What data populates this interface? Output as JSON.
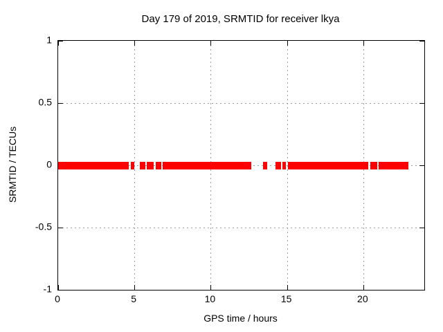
{
  "chart_data": {
    "type": "scatter",
    "title": "Day 179 of 2019, SRMTID for receiver lkya",
    "xlabel": "GPS time / hours",
    "ylabel": "SRMTID / TECUs",
    "xlim": [
      0,
      24
    ],
    "ylim": [
      -1,
      1
    ],
    "x_ticks": [
      {
        "value": 0,
        "label": "0"
      },
      {
        "value": 5,
        "label": "5"
      },
      {
        "value": 10,
        "label": "10"
      },
      {
        "value": 15,
        "label": "15"
      },
      {
        "value": 20,
        "label": "20"
      }
    ],
    "y_ticks": [
      {
        "value": -1,
        "label": "-1"
      },
      {
        "value": -0.5,
        "label": "-0.5"
      },
      {
        "value": 0,
        "label": "0"
      },
      {
        "value": 0.5,
        "label": "0.5"
      },
      {
        "value": 1,
        "label": "1"
      }
    ],
    "grid": true,
    "legend_position": "none",
    "series": [
      {
        "name": "SRMTID",
        "color": "#ff0000",
        "marker": "square",
        "y_value": 0,
        "x_segments_hours": [
          [
            0.0,
            4.63
          ],
          [
            4.78,
            4.9
          ],
          [
            5.37,
            5.72
          ],
          [
            5.82,
            6.27
          ],
          [
            6.4,
            6.75
          ],
          [
            6.87,
            12.68
          ],
          [
            13.45,
            13.72
          ],
          [
            14.25,
            14.62
          ],
          [
            14.72,
            14.95
          ],
          [
            15.05,
            20.3
          ],
          [
            20.45,
            20.92
          ],
          [
            21.0,
            22.94
          ]
        ]
      }
    ]
  },
  "colors": {
    "background": "#ffffff",
    "border": "#000000",
    "grid": "#9b9b9b",
    "text": "#000000",
    "data": "#ff0000"
  }
}
